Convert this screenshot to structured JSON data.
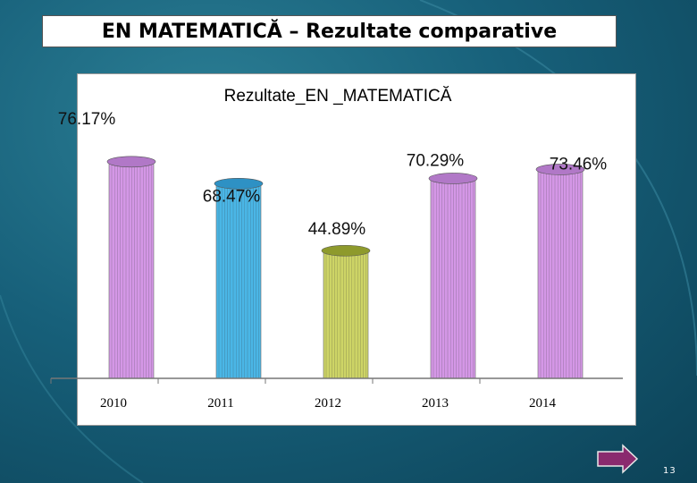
{
  "slide": {
    "title": "EN MATEMATICĂ – Rezultate comparative",
    "page_number": "13"
  },
  "chart_data": {
    "type": "bar",
    "title": "Rezultate_EN _MATEMATICĂ",
    "categories": [
      "2010",
      "2011",
      "2012",
      "2013",
      "2014"
    ],
    "values": [
      76.17,
      68.47,
      44.89,
      70.29,
      73.46
    ],
    "data_labels": [
      "76.17%",
      "68.47%",
      "44.89%",
      "70.29%",
      "73.46%"
    ],
    "colors": [
      "#d497e6",
      "#4ab6e6",
      "#cdd466",
      "#d497e6",
      "#d497e6"
    ],
    "top_colors": [
      "#b178c7",
      "#2e91c4",
      "#8e9a2c",
      "#b178c7",
      "#b178c7"
    ],
    "ylim": [
      0,
      100
    ],
    "grid": false,
    "legend": "none"
  }
}
